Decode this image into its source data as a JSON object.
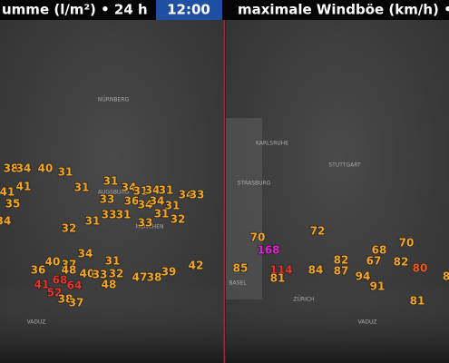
{
  "header": {
    "left_title": "umme (l/m²) • 24 h",
    "time": "12:00",
    "right_title": "maximale Windböe (km/h) •"
  },
  "left_panel": {
    "places": [
      "NÜRNBERG",
      "AUGSBURG",
      "MÜNCHEN",
      "VADUZ"
    ],
    "values": [
      {
        "value": 38,
        "color": "#f5a623"
      },
      {
        "value": 34,
        "color": "#f5a623"
      },
      {
        "value": 40,
        "color": "#f5a623"
      },
      {
        "value": 31,
        "color": "#f5a623"
      },
      {
        "value": 41,
        "color": "#f5a623"
      },
      {
        "value": 41,
        "color": "#f5a623"
      },
      {
        "value": 35,
        "color": "#f5a623"
      },
      {
        "value": 34,
        "color": "#f5a623"
      },
      {
        "value": 31,
        "color": "#f5a623"
      },
      {
        "value": 31,
        "color": "#f5a623"
      },
      {
        "value": 34,
        "color": "#f5a623"
      },
      {
        "value": 31,
        "color": "#f5a623"
      },
      {
        "value": 34,
        "color": "#f5a623"
      },
      {
        "value": 31,
        "color": "#f5a623"
      },
      {
        "value": 34,
        "color": "#f5a623"
      },
      {
        "value": 33,
        "color": "#f5a623"
      },
      {
        "value": 33,
        "color": "#f5a623"
      },
      {
        "value": 36,
        "color": "#f5a623"
      },
      {
        "value": 34,
        "color": "#f5a623"
      },
      {
        "value": 34,
        "color": "#f5a623"
      },
      {
        "value": 31,
        "color": "#f5a623"
      },
      {
        "value": 33,
        "color": "#f5a623"
      },
      {
        "value": 31,
        "color": "#f5a623"
      },
      {
        "value": 31,
        "color": "#f5a623"
      },
      {
        "value": 31,
        "color": "#f5a623"
      },
      {
        "value": 32,
        "color": "#f5a623"
      },
      {
        "value": 33,
        "color": "#f5a623"
      },
      {
        "value": 32,
        "color": "#f5a623"
      },
      {
        "value": 34,
        "color": "#f5a623"
      },
      {
        "value": 40,
        "color": "#f5a623"
      },
      {
        "value": 37,
        "color": "#f5a623"
      },
      {
        "value": 31,
        "color": "#f5a623"
      },
      {
        "value": 36,
        "color": "#f5a623"
      },
      {
        "value": 48,
        "color": "#f5a623"
      },
      {
        "value": 40,
        "color": "#f5a623"
      },
      {
        "value": 33,
        "color": "#f5a623"
      },
      {
        "value": 32,
        "color": "#f5a623"
      },
      {
        "value": 47,
        "color": "#f5a623"
      },
      {
        "value": 38,
        "color": "#f5a623"
      },
      {
        "value": 39,
        "color": "#f5a623"
      },
      {
        "value": 42,
        "color": "#f5a623"
      },
      {
        "value": 41,
        "color": "#e8332a"
      },
      {
        "value": 68,
        "color": "#e8332a"
      },
      {
        "value": 64,
        "color": "#e8332a"
      },
      {
        "value": 48,
        "color": "#f5a623"
      },
      {
        "value": 52,
        "color": "#e8332a"
      },
      {
        "value": 38,
        "color": "#f5a623"
      },
      {
        "value": 37,
        "color": "#f5a623"
      }
    ]
  },
  "right_panel": {
    "places": [
      "KARLSRUHE",
      "STUTTGART",
      "STRASBURG",
      "BASEL",
      "ZÜRICH",
      "VADUZ"
    ],
    "values": [
      {
        "value": 70,
        "color": "#f5a623"
      },
      {
        "value": 72,
        "color": "#f5a623"
      },
      {
        "value": 168,
        "color": "#e020d0"
      },
      {
        "value": 85,
        "color": "#f5a623"
      },
      {
        "value": 114,
        "color": "#e8332a"
      },
      {
        "value": 81,
        "color": "#f5a623"
      },
      {
        "value": 84,
        "color": "#f5a623"
      },
      {
        "value": 82,
        "color": "#f5a623"
      },
      {
        "value": 87,
        "color": "#f5a623"
      },
      {
        "value": 67,
        "color": "#f5a623"
      },
      {
        "value": 68,
        "color": "#f5a623"
      },
      {
        "value": 70,
        "color": "#f5a623"
      },
      {
        "value": 82,
        "color": "#f5a623"
      },
      {
        "value": 80,
        "color": "#ee5a24"
      },
      {
        "value": 94,
        "color": "#f5a623"
      },
      {
        "value": 91,
        "color": "#f5a623"
      },
      {
        "value": 81,
        "color": "#f5a623"
      },
      {
        "value": 8,
        "color": "#f5a623"
      }
    ]
  }
}
